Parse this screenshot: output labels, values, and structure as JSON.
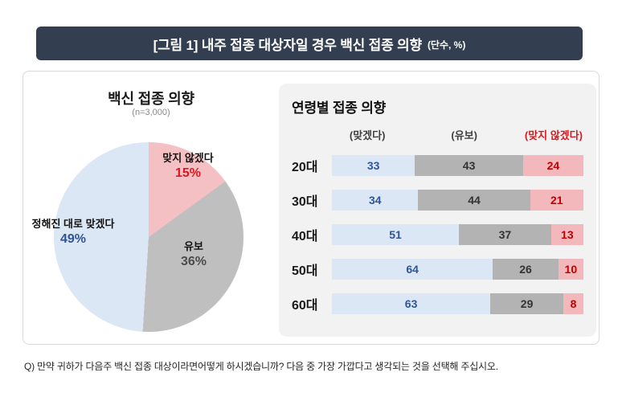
{
  "header": {
    "title": "[그림 1] 내주 접종 대상자일 경우 백신 접종 의향",
    "unit_note": "(단수, %)"
  },
  "pie_panel": {
    "title": "백신 접종 의향",
    "subtitle": "(n=3,000)",
    "slices": [
      {
        "label": "맞지 않겠다",
        "pct": 15,
        "value_text": "15%",
        "color": "#f4c0c4"
      },
      {
        "label": "유보",
        "pct": 36,
        "value_text": "36%",
        "color": "#bfbfbf"
      },
      {
        "label": "정해진 대로 맞겠다",
        "pct": 49,
        "value_text": "49%",
        "color": "#dbe7f4"
      }
    ]
  },
  "bar_panel": {
    "title": "연령별 접종 의향",
    "col_headers": [
      "(맞겠다)",
      "(유보)",
      "(맞지 않겠다)"
    ],
    "rows": [
      {
        "age": "20대",
        "values": [
          33,
          43,
          24
        ]
      },
      {
        "age": "30대",
        "values": [
          34,
          44,
          21
        ]
      },
      {
        "age": "40대",
        "values": [
          51,
          37,
          13
        ]
      },
      {
        "age": "50대",
        "values": [
          64,
          26,
          10
        ]
      },
      {
        "age": "60대",
        "values": [
          63,
          29,
          8
        ]
      }
    ]
  },
  "footer": {
    "question": "Q) 만약 귀하가 다음주 백신 접종 대상이라면어떻게 하시겠습니까? 다음 중 가장 가깝다고 생각되는 것을 선택해 주십시오."
  },
  "colors": {
    "navy": "#333f50",
    "blue_fill": "#dbe7f4",
    "gray_fill": "#b3b3b3",
    "pink_bar_fill": "#f2b8bc",
    "blue_text": "#2f5597",
    "gray_text": "#4d4d4d",
    "red_text": "#d71a21",
    "red_dark": "#c00000",
    "panel_bg": "#f2f2f2",
    "box_border": "#d9d9d9"
  },
  "chart_data": [
    {
      "type": "pie",
      "title": "백신 접종 의향",
      "subtitle": "(n=3,000)",
      "labels": [
        "정해진 대로 맞겠다",
        "유보",
        "맞지 않겠다"
      ],
      "values": [
        49,
        36,
        15
      ],
      "unit": "%",
      "colors": [
        "#dbe7f4",
        "#bfbfbf",
        "#f4c0c4"
      ]
    },
    {
      "type": "bar",
      "orientation": "horizontal-stacked",
      "title": "연령별 접종 의향",
      "categories": [
        "20대",
        "30대",
        "40대",
        "50대",
        "60대"
      ],
      "series": [
        {
          "name": "(맞겠다)",
          "values": [
            33,
            34,
            51,
            64,
            63
          ]
        },
        {
          "name": "(유보)",
          "values": [
            43,
            44,
            37,
            26,
            29
          ]
        },
        {
          "name": "(맞지 않겠다)",
          "values": [
            24,
            21,
            13,
            10,
            8
          ]
        }
      ],
      "xlim": [
        0,
        100
      ],
      "unit": "%",
      "legend_position": "top"
    }
  ]
}
